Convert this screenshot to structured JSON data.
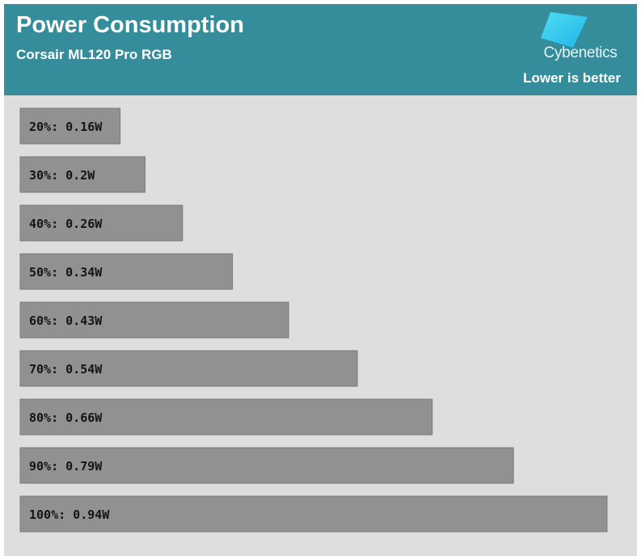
{
  "header": {
    "title": "Power Consumption",
    "subtitle": "Corsair ML120 Pro RGB",
    "brand": "Cybenetics",
    "note": "Lower is better"
  },
  "colors": {
    "header_bg": "#358c9a",
    "plot_bg": "#dedede",
    "bar_fill": "#919191",
    "bar_stroke": "#7a7a7a",
    "logo_accent": "#2ecbef"
  },
  "chart_data": {
    "type": "bar",
    "orientation": "horizontal",
    "title": "Power Consumption",
    "subtitle": "Corsair ML120 Pro RGB",
    "categories": [
      "20%",
      "30%",
      "40%",
      "50%",
      "60%",
      "70%",
      "80%",
      "90%",
      "100%"
    ],
    "values": [
      0.16,
      0.2,
      0.26,
      0.34,
      0.43,
      0.54,
      0.66,
      0.79,
      0.94
    ],
    "labels": [
      "20%: 0.16W",
      "30%: 0.2W",
      "40%: 0.26W",
      "50%: 0.34W",
      "60%: 0.43W",
      "70%: 0.54W",
      "80%: 0.66W",
      "90%: 0.79W",
      "100%: 0.94W"
    ],
    "unit": "W",
    "xlim": [
      0,
      0.94
    ],
    "grid": false,
    "legend": "none"
  }
}
